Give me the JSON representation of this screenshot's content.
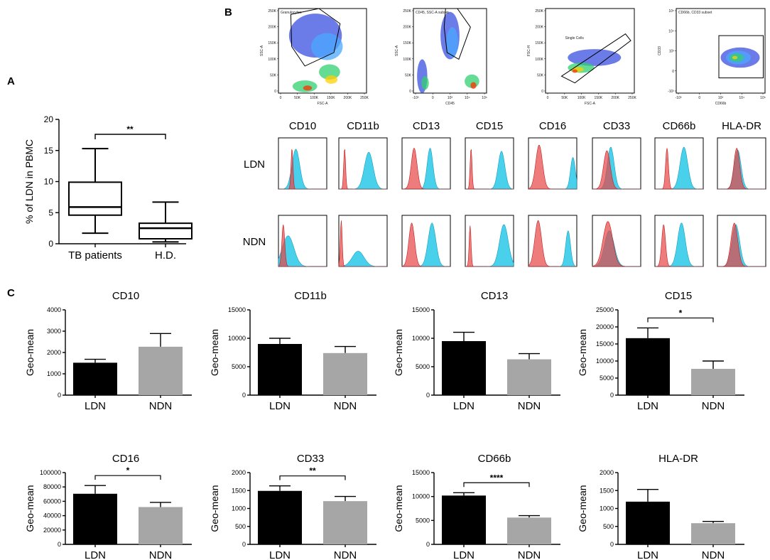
{
  "panels": {
    "a": "A",
    "b": "B",
    "c": "C"
  },
  "chart_data": [
    {
      "id": "A",
      "type": "box",
      "ylabel": "% of LDN in PBMC",
      "ylim": [
        0,
        20
      ],
      "yticks": [
        0,
        5,
        10,
        15,
        20
      ],
      "categories": [
        "TB patients",
        "H.D."
      ],
      "boxes": [
        {
          "name": "TB patients",
          "min": 1.7,
          "q1": 4.6,
          "median": 5.9,
          "q3": 9.9,
          "max": 15.3
        },
        {
          "name": "H.D.",
          "min": 0.3,
          "q1": 0.8,
          "median": 2.5,
          "q3": 3.3,
          "max": 6.7
        }
      ],
      "significance": {
        "label": "**",
        "between": [
          0,
          1
        ]
      }
    },
    {
      "id": "B-gating",
      "type": "scatter",
      "plots": [
        {
          "gate_label": "Granulocytes",
          "xlabel": "FSC-A",
          "ylabel": "SSC-A",
          "xticks": [
            "0",
            "50K",
            "100K",
            "150K",
            "200K",
            "250K"
          ],
          "yticks": [
            "0",
            "50K",
            "100K",
            "150K",
            "200K",
            "250K"
          ]
        },
        {
          "gate_label": "CD45, SSC-A subset",
          "xlabel": "CD45",
          "ylabel": "SSC-A",
          "xticks": [
            "-10³",
            "0",
            "10³",
            "10⁴",
            "10⁵"
          ],
          "yticks": [
            "0",
            "50K",
            "100K",
            "150K",
            "200K",
            "250K"
          ]
        },
        {
          "gate_label": "Single Cells",
          "xlabel": "FSC-A",
          "ylabel": "FSC-H",
          "xticks": [
            "0",
            "50K",
            "100K",
            "150K",
            "200K",
            "250K"
          ],
          "yticks": [
            "0",
            "50K",
            "100K",
            "150K",
            "200K",
            "250K"
          ]
        },
        {
          "gate_label": "CD66b, CD33 subset",
          "xlabel": "CD66b",
          "ylabel": "CD33",
          "xticks": [
            "-10³",
            "0",
            "10³",
            "10⁴",
            "10⁵"
          ],
          "yticks": [
            "-10³",
            "0",
            "10³",
            "10⁴",
            "10⁵"
          ]
        }
      ]
    },
    {
      "id": "B-histograms",
      "type": "area",
      "markers": [
        "CD10",
        "CD11b",
        "CD13",
        "CD15",
        "CD16",
        "CD33",
        "CD66b",
        "HLA-DR"
      ],
      "rows": [
        "LDN",
        "NDN"
      ],
      "series": [
        "isotype control (red)",
        "marker staining (cyan)"
      ]
    },
    {
      "id": "C",
      "type": "bar",
      "categories": [
        "LDN",
        "NDN"
      ],
      "ylabel": "Geo-mean",
      "plots": [
        {
          "title": "CD10",
          "ylim": [
            0,
            4000
          ],
          "yticks": [
            0,
            1000,
            2000,
            3000,
            4000
          ],
          "values": [
            1520,
            2270
          ],
          "errors": [
            160,
            620
          ],
          "sig": ""
        },
        {
          "title": "CD11b",
          "ylim": [
            0,
            15000
          ],
          "yticks": [
            0,
            5000,
            10000,
            15000
          ],
          "values": [
            9000,
            7400
          ],
          "errors": [
            1000,
            1150
          ],
          "sig": ""
        },
        {
          "title": "CD13",
          "ylim": [
            0,
            15000
          ],
          "yticks": [
            0,
            5000,
            10000,
            15000
          ],
          "values": [
            9500,
            6300
          ],
          "errors": [
            1550,
            1000
          ],
          "sig": ""
        },
        {
          "title": "CD15",
          "ylim": [
            0,
            25000
          ],
          "yticks": [
            0,
            5000,
            10000,
            15000,
            20000,
            25000
          ],
          "values": [
            16700,
            7700
          ],
          "errors": [
            3000,
            2300
          ],
          "sig": "*"
        },
        {
          "title": "CD16",
          "ylim": [
            0,
            100000
          ],
          "yticks": [
            0,
            20000,
            40000,
            60000,
            80000,
            100000
          ],
          "values": [
            70500,
            52000
          ],
          "errors": [
            11500,
            6500
          ],
          "sig": "*"
        },
        {
          "title": "CD33",
          "ylim": [
            0,
            2000
          ],
          "yticks": [
            0,
            500,
            1000,
            1500,
            2000
          ],
          "values": [
            1490,
            1205
          ],
          "errors": [
            140,
            130
          ],
          "sig": "**"
        },
        {
          "title": "CD66b",
          "ylim": [
            0,
            15000
          ],
          "yticks": [
            0,
            5000,
            10000,
            15000
          ],
          "values": [
            10200,
            5600
          ],
          "errors": [
            600,
            400
          ],
          "sig": "****"
        },
        {
          "title": "HLA-DR",
          "ylim": [
            0,
            2000
          ],
          "yticks": [
            0,
            500,
            1000,
            1500,
            2000
          ],
          "values": [
            1190,
            590
          ],
          "errors": [
            340,
            50
          ],
          "sig": ""
        }
      ]
    }
  ]
}
